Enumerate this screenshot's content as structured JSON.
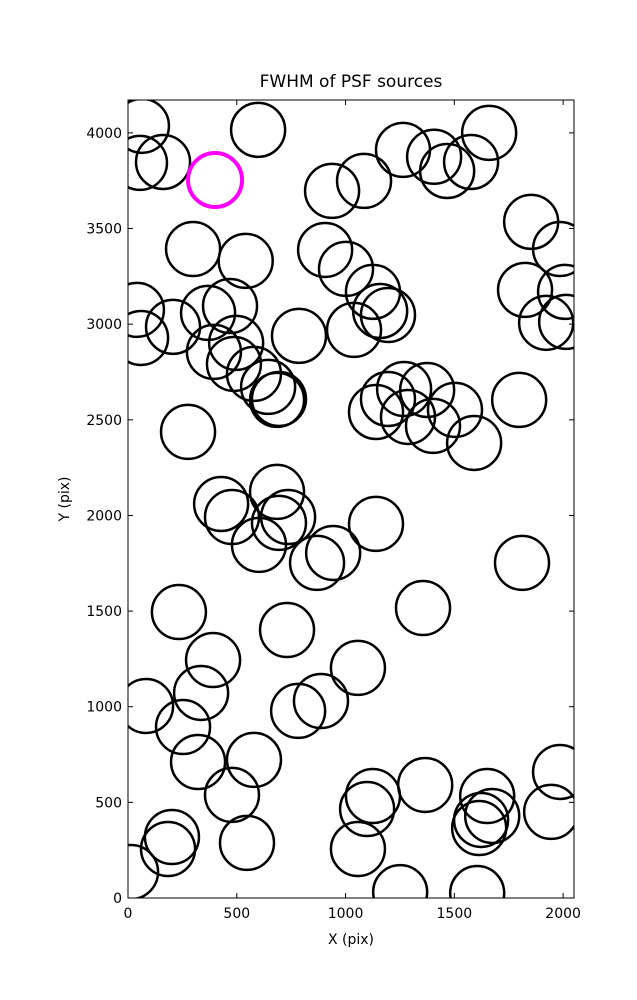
{
  "chart_data": {
    "type": "scatter",
    "title": "FWHM of PSF sources",
    "x_label": "X (pix)",
    "y_label": "Y (pix)",
    "xlim": [
      0,
      2050
    ],
    "ylim": [
      0,
      4172
    ],
    "xticks": [
      0,
      500,
      1000,
      1500,
      2000
    ],
    "yticks": [
      0,
      500,
      1000,
      1500,
      2000,
      2500,
      3000,
      3500,
      4000
    ],
    "series": [
      {
        "color": "#000000",
        "linewidth": 2.5,
        "x": [
          64,
          55,
          161,
          598,
          938,
          1085,
          1264,
          1407,
          1467,
          1577,
          1660,
          1853,
          1986,
          299,
          541,
          906,
          1002,
          1126,
          1159,
          1195,
          1039,
          1825,
          2009,
          1922,
          2014,
          41,
          60,
          207,
          368,
          469,
          497,
          395,
          487,
          579,
          644,
          694,
          786,
          276,
          685,
          1140,
          1195,
          1269,
          1375,
          1287,
          1402,
          1503,
          1591,
          1798,
          428,
          478,
          685,
          694,
          736,
          602,
          869,
          943,
          1140,
          1811,
          234,
          731,
          1356,
          391,
          336,
          83,
          253,
          322,
          478,
          579,
          782,
          887,
          1057,
          1126,
          1099,
          1057,
          547,
          202,
          184,
          14,
          1251,
          1366,
          1651,
          1623,
          1614,
          1674,
          1605,
          1945,
          1986
        ],
        "y": [
          4037,
          3843,
          3848,
          4016,
          3697,
          3749,
          3911,
          3875,
          3801,
          3848,
          4000,
          3535,
          3393,
          3393,
          3331,
          3388,
          3289,
          3169,
          3069,
          3048,
          2970,
          3179,
          3169,
          3007,
          3012,
          3075,
          2928,
          2986,
          3059,
          3095,
          2902,
          2855,
          2792,
          2740,
          2672,
          2609,
          2939,
          2437,
          2604,
          2541,
          2609,
          2661,
          2656,
          2515,
          2468,
          2552,
          2379,
          2604,
          2060,
          1992,
          2123,
          1961,
          1992,
          1846,
          1752,
          1804,
          1956,
          1752,
          1495,
          1401,
          1516,
          1244,
          1072,
          1004,
          894,
          711,
          539,
          722,
          978,
          1030,
          1203,
          533,
          465,
          256,
          288,
          319,
          256,
          136,
          31,
          591,
          533,
          408,
          366,
          429,
          26,
          450,
          659
        ]
      },
      {
        "color": "#ff00ff",
        "linewidth": 4,
        "x": [
          400
        ],
        "y": [
          3754
        ]
      }
    ]
  }
}
